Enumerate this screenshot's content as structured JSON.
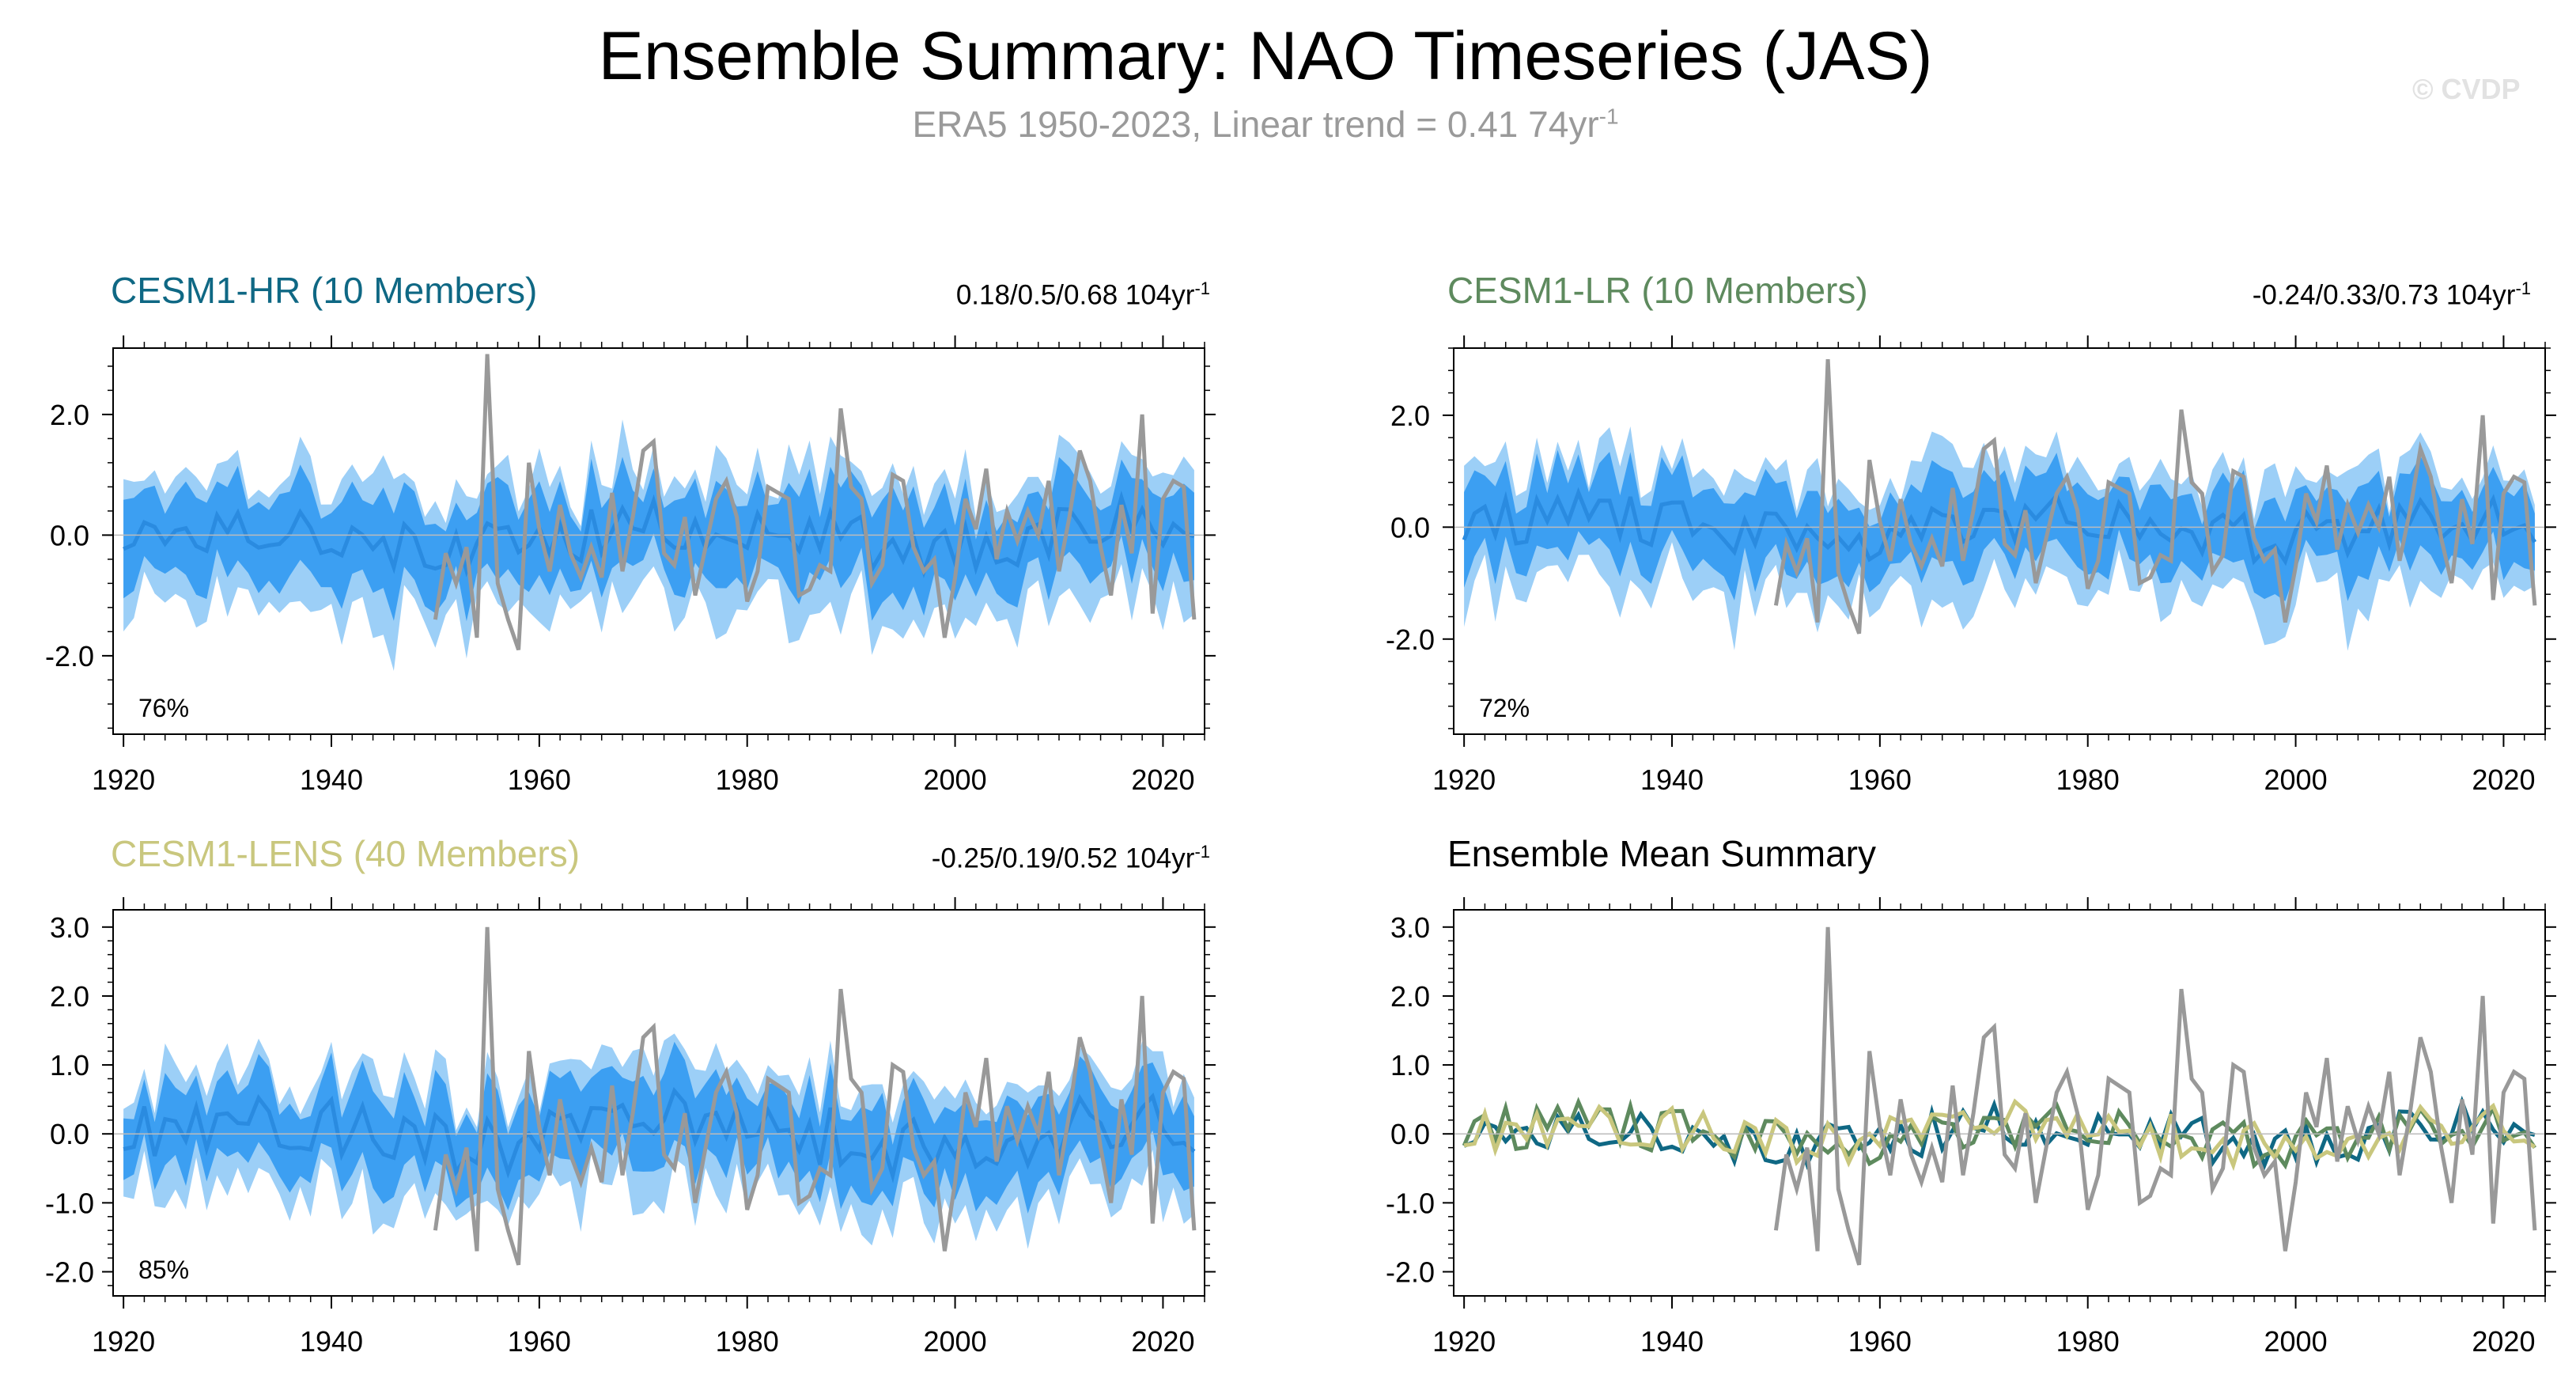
{
  "title": "Ensemble Summary: NAO Timeseries (JAS)",
  "subtitle": "ERA5 1950-2023, Linear trend = 0.41 74yr",
  "subtitle_exp": "-1",
  "watermark": "© CVDP",
  "colors": {
    "obs": "#999999",
    "band_outer": "#9ccff7",
    "band_inner": "#3c9ff2",
    "ens_mean": "#2a8be0",
    "hr": "#0f6884",
    "lr": "#5e8a5e",
    "lens": "#c9c77e"
  },
  "chart_data": [
    {
      "type": "area",
      "title": "CESM1-HR (10 Members)",
      "stats": "0.18/0.5/0.68 104yr",
      "stats_exp": "-1",
      "percent_label": "76%",
      "title_color": "#0f6884",
      "xlim": [
        1919,
        2024
      ],
      "ylim": [
        -3.3,
        3.1
      ],
      "yticks": [
        -2.0,
        0.0,
        2.0
      ],
      "ytick_labels": [
        "-2.0",
        "0.0",
        "2.0"
      ],
      "xticks": [
        1920,
        1940,
        1960,
        1980,
        2000,
        2020
      ],
      "ens_seed": 17,
      "ens_spread": 0.85
    },
    {
      "type": "area",
      "title": "CESM1-LR (10 Members)",
      "stats": "-0.24/0.33/0.73 104yr",
      "stats_exp": "-1",
      "percent_label": "72%",
      "title_color": "#5e8a5e",
      "xlim": [
        1919,
        2024
      ],
      "ylim": [
        -3.7,
        3.2
      ],
      "yticks": [
        -2.0,
        0.0,
        2.0
      ],
      "ytick_labels": [
        "-2.0",
        "0.0",
        "2.0"
      ],
      "xticks": [
        1920,
        1940,
        1960,
        1980,
        2000,
        2020
      ],
      "ens_seed": 29,
      "ens_spread": 0.85
    },
    {
      "type": "area",
      "title": "CESM1-LENS (40 Members)",
      "stats": "-0.25/0.19/0.52 104yr",
      "stats_exp": "-1",
      "percent_label": "85%",
      "title_color": "#c9c77e",
      "xlim": [
        1919,
        2024
      ],
      "ylim": [
        -2.35,
        3.25
      ],
      "yticks": [
        -2.0,
        -1.0,
        0.0,
        1.0,
        2.0,
        3.0
      ],
      "ytick_labels": [
        "-2.0",
        "-1.0",
        "0.0",
        "1.0",
        "2.0",
        "3.0"
      ],
      "xticks": [
        1920,
        1940,
        1960,
        1980,
        2000,
        2020
      ],
      "ens_seed": 43,
      "ens_spread": 0.7
    },
    {
      "type": "line",
      "title": "Ensemble Mean Summary",
      "title_color": "#000000",
      "xlim": [
        1919,
        2024
      ],
      "ylim": [
        -2.35,
        3.25
      ],
      "yticks": [
        -2.0,
        -1.0,
        0.0,
        1.0,
        2.0,
        3.0
      ],
      "ytick_labels": [
        "-2.0",
        "-1.0",
        "0.0",
        "1.0",
        "2.0",
        "3.0"
      ],
      "xticks": [
        1920,
        1940,
        1960,
        1980,
        2000,
        2020
      ],
      "series": [
        {
          "color": "#0f6884",
          "seed": 17
        },
        {
          "color": "#5e8a5e",
          "seed": 29
        },
        {
          "color": "#c9c77e",
          "seed": 43
        }
      ]
    }
  ],
  "obs_series": {
    "years": [
      1950,
      1951,
      1952,
      1953,
      1954,
      1955,
      1956,
      1957,
      1958,
      1959,
      1960,
      1961,
      1962,
      1963,
      1964,
      1965,
      1966,
      1967,
      1968,
      1969,
      1970,
      1971,
      1972,
      1973,
      1974,
      1975,
      1976,
      1977,
      1978,
      1979,
      1980,
      1981,
      1982,
      1983,
      1984,
      1985,
      1986,
      1987,
      1988,
      1989,
      1990,
      1991,
      1992,
      1993,
      1994,
      1995,
      1996,
      1997,
      1998,
      1999,
      2000,
      2001,
      2002,
      2003,
      2004,
      2005,
      2006,
      2007,
      2008,
      2009,
      2010,
      2011,
      2012,
      2013,
      2014,
      2015,
      2016,
      2017,
      2018,
      2019,
      2020,
      2021,
      2022,
      2023
    ],
    "values": [
      -1.4,
      -0.3,
      -0.8,
      -0.2,
      -1.7,
      3.0,
      -0.8,
      -1.4,
      -1.9,
      1.2,
      0.1,
      -0.6,
      0.5,
      -0.3,
      -0.7,
      -0.2,
      -0.7,
      0.7,
      -0.6,
      0.3,
      1.4,
      1.55,
      -0.3,
      -0.5,
      0.3,
      -1.0,
      -0.2,
      0.6,
      0.9,
      0.3,
      -1.1,
      -0.6,
      0.8,
      0.7,
      0.6,
      -1.0,
      -0.9,
      -0.5,
      -0.6,
      2.1,
      0.8,
      0.6,
      -0.8,
      -0.5,
      1.0,
      0.9,
      -0.2,
      -0.6,
      -0.4,
      -1.7,
      -0.7,
      0.6,
      0.1,
      1.1,
      -0.4,
      0.4,
      -0.1,
      0.4,
      0.0,
      0.9,
      -0.6,
      0.3,
      1.4,
      0.9,
      -0.2,
      -1.0,
      0.5,
      -0.3,
      2.0,
      -1.3,
      0.6,
      0.9,
      0.8,
      -1.4
    ]
  }
}
